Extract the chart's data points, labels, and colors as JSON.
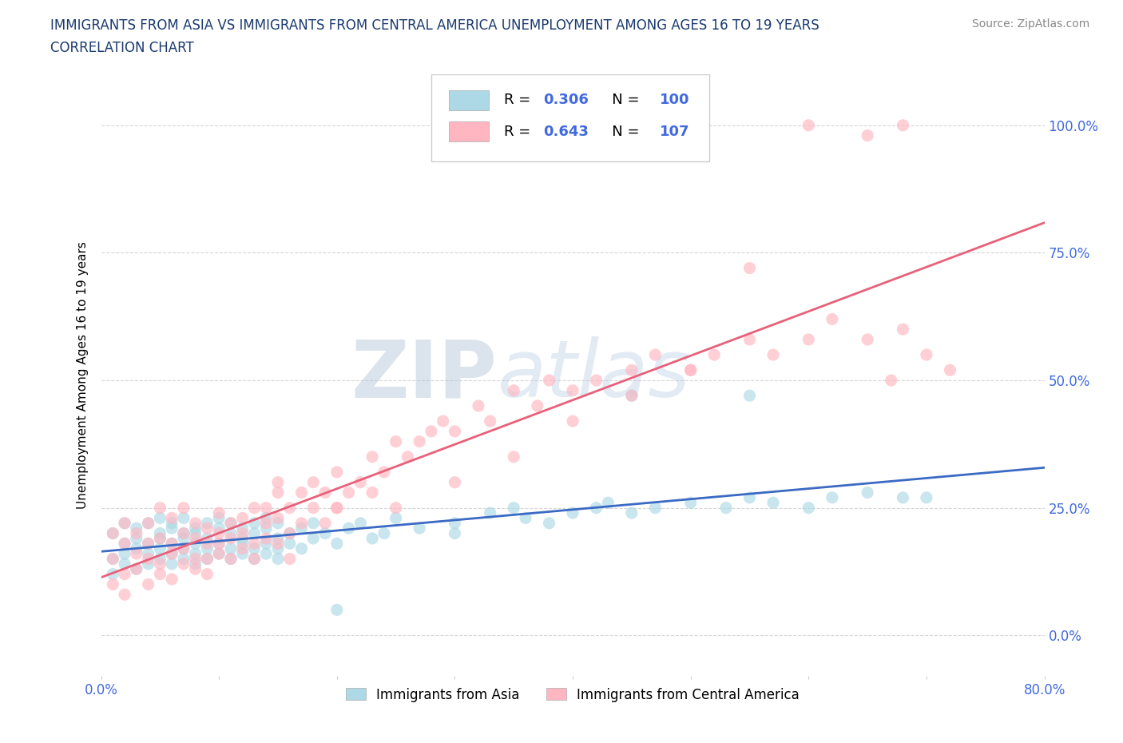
{
  "title_line1": "IMMIGRANTS FROM ASIA VS IMMIGRANTS FROM CENTRAL AMERICA UNEMPLOYMENT AMONG AGES 16 TO 19 YEARS",
  "title_line2": "CORRELATION CHART",
  "source_text": "Source: ZipAtlas.com",
  "ylabel": "Unemployment Among Ages 16 to 19 years",
  "xlim": [
    0.0,
    0.8
  ],
  "ylim": [
    -0.08,
    1.1
  ],
  "yticks": [
    0.0,
    0.25,
    0.5,
    0.75,
    1.0
  ],
  "ytick_labels": [
    "0.0%",
    "25.0%",
    "50.0%",
    "75.0%",
    "100.0%"
  ],
  "legend_labels": [
    "Immigrants from Asia",
    "Immigrants from Central America"
  ],
  "R_asia": 0.306,
  "N_asia": 100,
  "R_central": 0.643,
  "N_central": 107,
  "color_asia": "#ADD8E6",
  "color_central": "#FFB6C1",
  "line_color_asia": "#3B6AC4",
  "line_color_central": "#E8607A",
  "title_color": "#1a3a6e",
  "axis_color": "#4169E1",
  "watermark_color": "#d0dce8",
  "grid_color": "#CCCCCC",
  "background_color": "#FFFFFF",
  "asia_scatter_x": [
    0.01,
    0.01,
    0.01,
    0.02,
    0.02,
    0.02,
    0.02,
    0.03,
    0.03,
    0.03,
    0.03,
    0.04,
    0.04,
    0.04,
    0.04,
    0.05,
    0.05,
    0.05,
    0.05,
    0.05,
    0.06,
    0.06,
    0.06,
    0.06,
    0.06,
    0.07,
    0.07,
    0.07,
    0.07,
    0.07,
    0.08,
    0.08,
    0.08,
    0.08,
    0.08,
    0.09,
    0.09,
    0.09,
    0.09,
    0.1,
    0.1,
    0.1,
    0.1,
    0.11,
    0.11,
    0.11,
    0.11,
    0.12,
    0.12,
    0.12,
    0.12,
    0.13,
    0.13,
    0.13,
    0.13,
    0.14,
    0.14,
    0.14,
    0.14,
    0.15,
    0.15,
    0.15,
    0.16,
    0.16,
    0.17,
    0.17,
    0.18,
    0.18,
    0.19,
    0.2,
    0.21,
    0.22,
    0.23,
    0.24,
    0.25,
    0.27,
    0.3,
    0.33,
    0.35,
    0.36,
    0.38,
    0.4,
    0.42,
    0.43,
    0.45,
    0.47,
    0.5,
    0.53,
    0.55,
    0.57,
    0.6,
    0.62,
    0.65,
    0.68,
    0.7,
    0.55,
    0.45,
    0.3,
    0.2,
    0.15
  ],
  "asia_scatter_y": [
    0.2,
    0.15,
    0.12,
    0.18,
    0.22,
    0.16,
    0.14,
    0.17,
    0.21,
    0.13,
    0.19,
    0.16,
    0.22,
    0.18,
    0.14,
    0.2,
    0.15,
    0.23,
    0.17,
    0.19,
    0.16,
    0.21,
    0.18,
    0.14,
    0.22,
    0.17,
    0.2,
    0.15,
    0.19,
    0.23,
    0.16,
    0.21,
    0.18,
    0.14,
    0.2,
    0.17,
    0.22,
    0.15,
    0.19,
    0.16,
    0.21,
    0.18,
    0.23,
    0.17,
    0.2,
    0.15,
    0.22,
    0.18,
    0.16,
    0.21,
    0.19,
    0.17,
    0.22,
    0.15,
    0.2,
    0.18,
    0.23,
    0.16,
    0.21,
    0.17,
    0.22,
    0.19,
    0.2,
    0.18,
    0.21,
    0.17,
    0.22,
    0.19,
    0.2,
    0.18,
    0.21,
    0.22,
    0.19,
    0.2,
    0.23,
    0.21,
    0.22,
    0.24,
    0.25,
    0.23,
    0.22,
    0.24,
    0.25,
    0.26,
    0.24,
    0.25,
    0.26,
    0.25,
    0.27,
    0.26,
    0.25,
    0.27,
    0.28,
    0.27,
    0.27,
    0.47,
    0.47,
    0.2,
    0.05,
    0.15
  ],
  "central_scatter_x": [
    0.01,
    0.01,
    0.01,
    0.02,
    0.02,
    0.02,
    0.02,
    0.03,
    0.03,
    0.03,
    0.04,
    0.04,
    0.04,
    0.04,
    0.05,
    0.05,
    0.05,
    0.05,
    0.06,
    0.06,
    0.06,
    0.06,
    0.07,
    0.07,
    0.07,
    0.07,
    0.08,
    0.08,
    0.08,
    0.08,
    0.09,
    0.09,
    0.09,
    0.09,
    0.1,
    0.1,
    0.1,
    0.1,
    0.11,
    0.11,
    0.11,
    0.12,
    0.12,
    0.12,
    0.13,
    0.13,
    0.13,
    0.14,
    0.14,
    0.14,
    0.15,
    0.15,
    0.15,
    0.16,
    0.16,
    0.16,
    0.17,
    0.17,
    0.18,
    0.18,
    0.19,
    0.19,
    0.2,
    0.2,
    0.21,
    0.22,
    0.23,
    0.23,
    0.24,
    0.25,
    0.26,
    0.27,
    0.28,
    0.29,
    0.3,
    0.32,
    0.33,
    0.35,
    0.37,
    0.38,
    0.4,
    0.42,
    0.45,
    0.47,
    0.5,
    0.52,
    0.55,
    0.57,
    0.6,
    0.62,
    0.65,
    0.67,
    0.68,
    0.7,
    0.72,
    0.68,
    0.65,
    0.6,
    0.55,
    0.5,
    0.45,
    0.4,
    0.35,
    0.3,
    0.25,
    0.2,
    0.15
  ],
  "central_scatter_y": [
    0.15,
    0.1,
    0.2,
    0.12,
    0.18,
    0.22,
    0.08,
    0.16,
    0.13,
    0.2,
    0.15,
    0.18,
    0.1,
    0.22,
    0.14,
    0.19,
    0.12,
    0.25,
    0.16,
    0.18,
    0.11,
    0.23,
    0.17,
    0.14,
    0.2,
    0.25,
    0.15,
    0.19,
    0.13,
    0.22,
    0.18,
    0.15,
    0.21,
    0.12,
    0.2,
    0.16,
    0.24,
    0.18,
    0.15,
    0.22,
    0.19,
    0.17,
    0.23,
    0.2,
    0.18,
    0.25,
    0.15,
    0.22,
    0.19,
    0.25,
    0.18,
    0.23,
    0.28,
    0.2,
    0.25,
    0.15,
    0.28,
    0.22,
    0.25,
    0.3,
    0.22,
    0.28,
    0.25,
    0.32,
    0.28,
    0.3,
    0.35,
    0.28,
    0.32,
    0.38,
    0.35,
    0.38,
    0.4,
    0.42,
    0.4,
    0.45,
    0.42,
    0.48,
    0.45,
    0.5,
    0.48,
    0.5,
    0.52,
    0.55,
    0.52,
    0.55,
    0.58,
    0.55,
    0.58,
    0.62,
    0.58,
    0.5,
    0.6,
    0.55,
    0.52,
    1.0,
    0.98,
    1.0,
    0.72,
    0.52,
    0.47,
    0.42,
    0.35,
    0.3,
    0.25,
    0.25,
    0.3
  ]
}
